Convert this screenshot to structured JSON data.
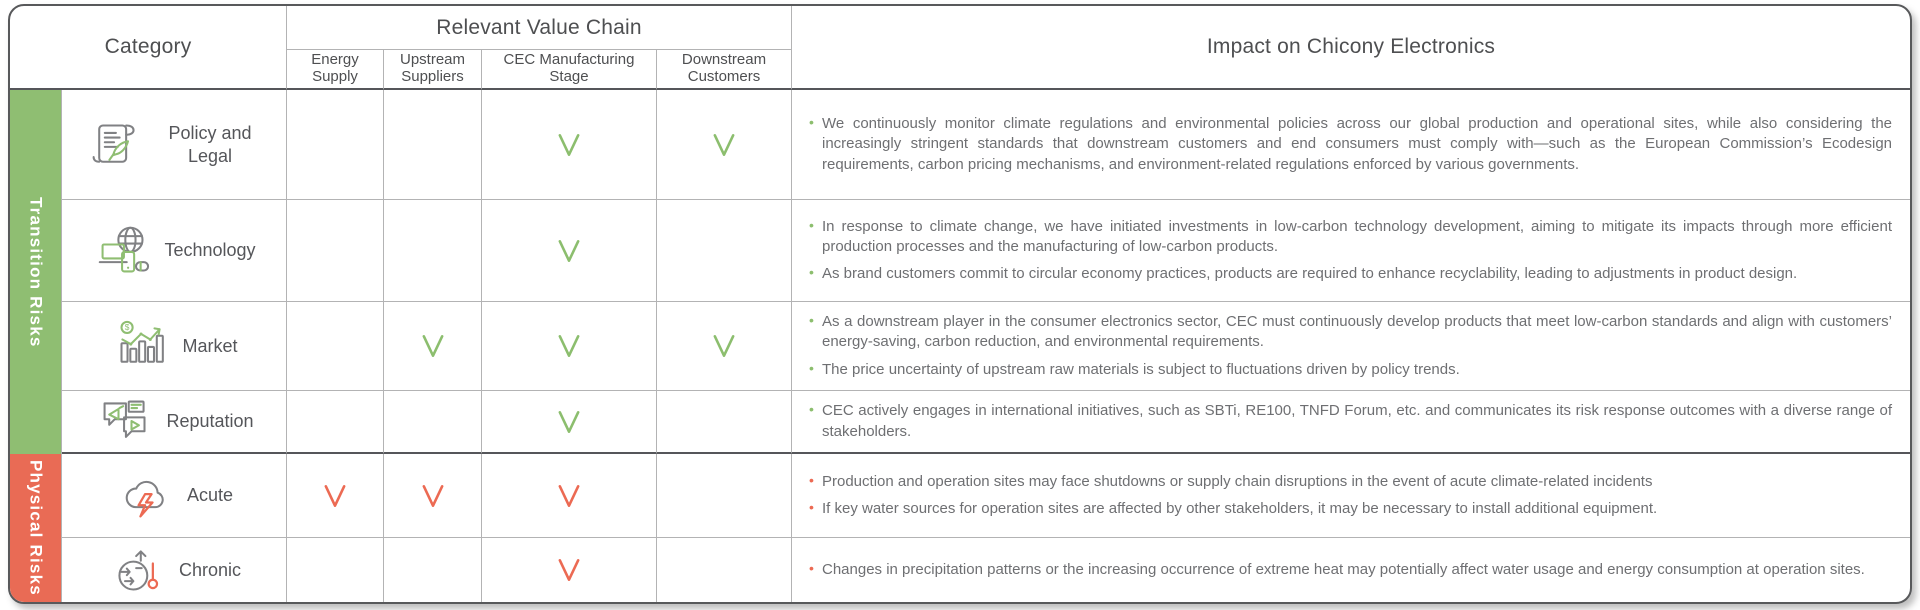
{
  "table": {
    "header": {
      "category_label": "Category",
      "value_chain_label": "Relevant Value Chain",
      "impact_label": "Impact on Chicony Electronics",
      "value_chain_columns": [
        "Energy Supply",
        "Upstream Suppliers",
        "CEC Manufacturing Stage",
        "Downstream Customers"
      ]
    },
    "groups": [
      {
        "id": "transition",
        "label": "Transition Risks",
        "color": "#8FBE72"
      },
      {
        "id": "physical",
        "label": "Physical Risks",
        "color": "#E96B55"
      }
    ],
    "check_colors": {
      "transition": "#8CBE6E",
      "physical": "#EC6A53"
    },
    "rows": [
      {
        "group": "transition",
        "category": "Policy and Legal",
        "icon": "policy-scroll-icon",
        "checks": [
          false,
          false,
          true,
          true
        ],
        "impacts": [
          "We continuously monitor climate regulations and environmental policies across our global production and operational sites, while also considering the increasingly stringent standards that downstream customers and end consumers must comply with—such as the European Commission’s Ecodesign requirements, carbon pricing mechanisms, and environment-related regulations enforced by various governments."
        ]
      },
      {
        "group": "transition",
        "category": "Technology",
        "icon": "technology-icon",
        "checks": [
          false,
          false,
          true,
          false
        ],
        "impacts": [
          "In response to climate change, we have initiated investments in low-carbon technology development, aiming to mitigate its impacts through more efficient production processes and the manufacturing of low-carbon products.",
          "As brand customers commit to circular economy practices, products are required to enhance recyclability, leading to adjustments in product design."
        ]
      },
      {
        "group": "transition",
        "category": "Market",
        "icon": "market-icon",
        "checks": [
          false,
          true,
          true,
          true
        ],
        "impacts": [
          "As a downstream player in the consumer electronics sector, CEC must continuously develop products that meet low-carbon standards and align with customers’ energy-saving, carbon reduction, and environmental requirements.",
          "The price uncertainty of upstream raw materials is subject to fluctuations driven by policy trends."
        ]
      },
      {
        "group": "transition",
        "category": "Reputation",
        "icon": "reputation-icon",
        "checks": [
          false,
          false,
          true,
          false
        ],
        "impacts": [
          "CEC actively engages in international initiatives, such as SBTi, RE100, TNFD Forum, etc. and communicates its risk response outcomes with a diverse range of stakeholders."
        ]
      },
      {
        "group": "physical",
        "category": "Acute",
        "icon": "acute-storm-icon",
        "checks": [
          true,
          true,
          true,
          false
        ],
        "impacts": [
          "Production and operation sites may face shutdowns or supply chain disruptions in the event of acute climate-related incidents",
          "If key water sources for operation sites are affected by other stakeholders, it may be necessary to install additional equipment."
        ]
      },
      {
        "group": "physical",
        "category": "Chronic",
        "icon": "chronic-heat-icon",
        "checks": [
          false,
          false,
          true,
          false
        ],
        "impacts": [
          "Changes in precipitation patterns or the increasing occurrence of extreme heat may potentially affect water usage and energy consumption at operation sites."
        ]
      }
    ]
  }
}
